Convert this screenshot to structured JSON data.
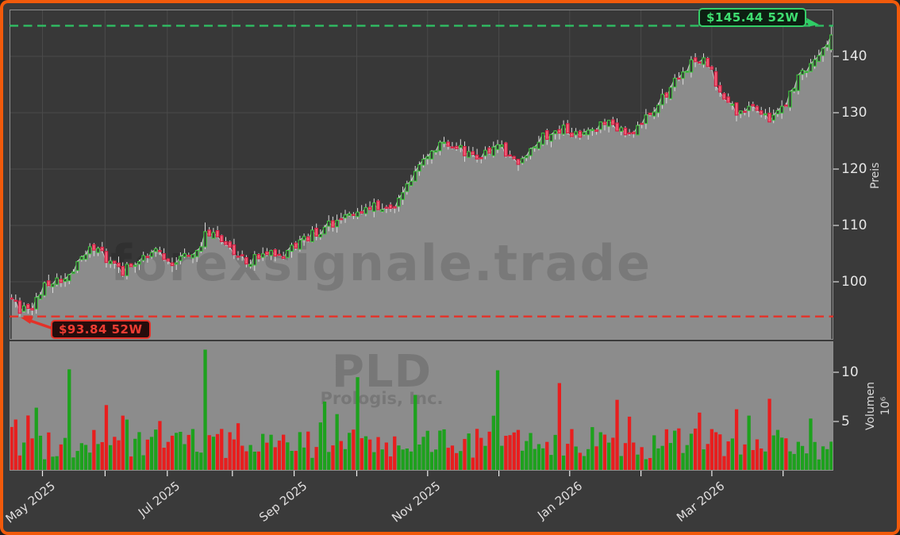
{
  "window": {
    "border_color": "#f15a0b",
    "background": "#3a3a3a"
  },
  "chart_data": {
    "type": "candlestick",
    "ticker": "PLD",
    "company": "Prologis, Inc.",
    "watermark": "forexsignale.trade",
    "price_axis": {
      "label": "Preis",
      "ticks": [
        100,
        110,
        120,
        130,
        140
      ],
      "range_approx": [
        89,
        148.5
      ]
    },
    "volume_axis": {
      "label": "Volumen",
      "exponent_label": "10⁶",
      "ticks": [
        5,
        10
      ],
      "range_approx": [
        0,
        13
      ]
    },
    "x_ticks": [
      "May 2025",
      "Jul 2025",
      "Sep 2025",
      "Nov 2025",
      "Jan 2026",
      "Mar 2026"
    ],
    "annotations": {
      "high_52w": {
        "label": "$145.44 52W",
        "value": 145.44
      },
      "low_52w": {
        "label": "$93.84 52W",
        "value": 93.84
      }
    },
    "colors": {
      "up_edge": "#3ec43e",
      "up_fill": "#393939",
      "down_edge": "#d41c40",
      "down_fill": "#ef5f78",
      "wick": "#dcdcdc",
      "area": "#8c8c8c",
      "close_line": "#c6c6c6",
      "vol_up": "#1da11d",
      "vol_down": "#e81e1e",
      "high_line": "#2fbe63",
      "low_line": "#e53229",
      "grid": "#4a4a4a",
      "spine": "#8f8f8f",
      "pane_bg": "#383838"
    },
    "num_candles": 200,
    "seed": 42,
    "weekly_close_anchors": [
      97.5,
      94.3,
      99.2,
      100.3,
      102.0,
      106.2,
      104.2,
      101.8,
      103.6,
      105.8,
      103.2,
      104.6,
      106.0,
      108.6,
      105.4,
      103.6,
      105.2,
      104.2,
      106.4,
      108.2,
      109.8,
      111.2,
      112.4,
      113.6,
      112.2,
      116.5,
      121.5,
      124.0,
      124.5,
      122.4,
      122.6,
      124.2,
      120.6,
      124.2,
      126.2,
      127.4,
      125.6,
      127.2,
      128.6,
      125.8,
      128.2,
      131.4,
      135.2,
      138.6,
      139.6,
      133.2,
      129.8,
      131.6,
      128.6,
      131.2,
      136.4,
      139.2,
      143.6
    ],
    "month_tick_indices": [
      7.5,
      22.7,
      37.8,
      53.6,
      68.6,
      83.8,
      101,
      118.3,
      135.5,
      152.8,
      170,
      187.3
    ],
    "labeled_month_slots": [
      0,
      2,
      4,
      6,
      8,
      10
    ],
    "overrides": {
      "2": {
        "o": 96.6,
        "h": 97.2,
        "l": 93.84,
        "c": 94.4
      },
      "47": {
        "o": 106.2,
        "h": 110.5,
        "l": 105.8,
        "c": 108.9
      },
      "199": {
        "o": 141.2,
        "h": 145.44,
        "l": 140.7,
        "c": 143.8
      }
    },
    "volume_spikes": {
      "1": 5.2,
      "6": 6.4,
      "14": 10.3,
      "47": 12.3,
      "84": 9.5,
      "98": 7.7,
      "118": 10.2,
      "133": 8.9,
      "147": 7.2,
      "167": 5.9,
      "179": 5.6,
      "194": 5.3
    }
  }
}
